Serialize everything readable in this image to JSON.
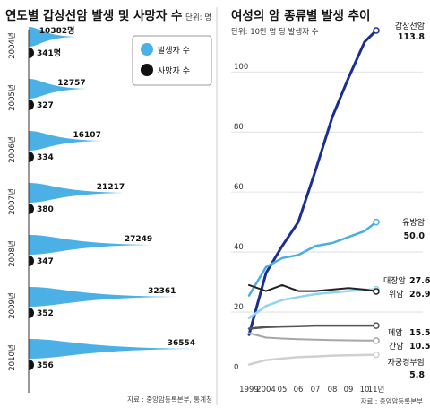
{
  "chart_data": [
    {
      "type": "area",
      "title": "연도별 갑상선암 발생 및 사망자 수",
      "unit_label": "단위: 명",
      "legend": [
        {
          "label": "발생자 수",
          "color": "#4ab0e6"
        },
        {
          "label": "사망자 수",
          "color": "#111111"
        }
      ],
      "rows": [
        {
          "year": "2004년",
          "incidence": 10382,
          "incidence_label": "10382명",
          "deaths": 341,
          "deaths_label": "341명"
        },
        {
          "year": "2005년",
          "incidence": 12757,
          "incidence_label": "12757",
          "deaths": 327,
          "deaths_label": "327"
        },
        {
          "year": "2006년",
          "incidence": 16107,
          "incidence_label": "16107",
          "deaths": 334,
          "deaths_label": "334"
        },
        {
          "year": "2007년",
          "incidence": 21217,
          "incidence_label": "21217",
          "deaths": 380,
          "deaths_label": "380"
        },
        {
          "year": "2008년",
          "incidence": 27249,
          "incidence_label": "27249",
          "deaths": 347,
          "deaths_label": "347"
        },
        {
          "year": "2009년",
          "incidence": 32361,
          "incidence_label": "32361",
          "deaths": 352,
          "deaths_label": "352"
        },
        {
          "year": "2010년",
          "incidence": 36554,
          "incidence_label": "36554",
          "deaths": 356,
          "deaths_label": "356"
        }
      ],
      "source": "자료 : 중앙암등록본부, 통계청"
    },
    {
      "type": "line",
      "title": "여성의 암 종류별 발생 추이",
      "ylabel": "단위: 10만 명 당 발생자 수",
      "x": [
        1999,
        2004,
        2005,
        2006,
        2007,
        2008,
        2009,
        2010,
        2011
      ],
      "x_tick_labels": [
        "1999",
        "2004",
        "05",
        "06",
        "07",
        "08",
        "09",
        "10",
        "11년"
      ],
      "yticks": [
        0,
        20,
        40,
        60,
        80,
        100
      ],
      "ylim": [
        0,
        115
      ],
      "series": [
        {
          "name": "갑상선암",
          "value_label": "113.8",
          "color": "#1b2f8f",
          "width": 3,
          "values": [
            12.5,
            33,
            42,
            50,
            67,
            85,
            98,
            110,
            113.8
          ]
        },
        {
          "name": "유방암",
          "value_label": "50.0",
          "color": "#4aaee0",
          "width": 2.5,
          "values": [
            25.5,
            35,
            38,
            39,
            42,
            43,
            45,
            47,
            50.0
          ]
        },
        {
          "name": "대장암",
          "value_label": "27.6",
          "color": "#8fd5f2",
          "width": 2.5,
          "values": [
            18,
            22,
            24,
            25,
            26,
            26.5,
            27,
            27.4,
            27.6
          ]
        },
        {
          "name": "위암",
          "value_label": "26.9",
          "color": "#222222",
          "width": 2,
          "values": [
            29,
            27,
            29,
            27,
            27,
            27.5,
            28,
            27.5,
            26.9
          ]
        },
        {
          "name": "폐암",
          "value_label": "15.5",
          "color": "#555555",
          "width": 2.5,
          "values": [
            14.5,
            15,
            15.2,
            15.3,
            15.5,
            15.5,
            15.5,
            15.5,
            15.5
          ]
        },
        {
          "name": "간암",
          "value_label": "10.5",
          "color": "#a6a6a6",
          "width": 2,
          "values": [
            13,
            11.5,
            11.2,
            11,
            10.8,
            10.7,
            10.6,
            10.5,
            10.5
          ]
        },
        {
          "name": "자궁경부암",
          "value_label": "5.8",
          "color": "#d0d0d0",
          "width": 2.5,
          "values": [
            2.5,
            4,
            4.5,
            5,
            5.2,
            5.5,
            5.6,
            5.7,
            5.8
          ]
        }
      ],
      "source": "자료 : 중앙암등록본부"
    }
  ]
}
